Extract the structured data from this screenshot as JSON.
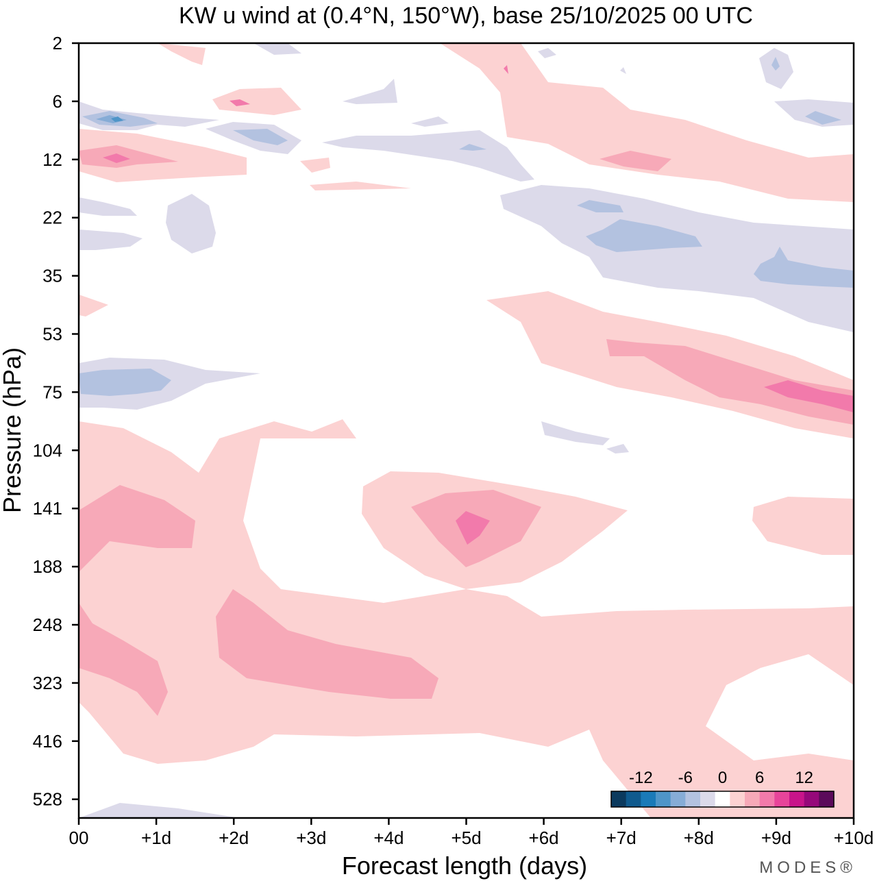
{
  "chart_data": {
    "type": "heatmap",
    "title": "KW u wind at (0.4°N, 150°W),  base 25/10/2025  00 UTC",
    "xlabel": "Forecast length (days)",
    "ylabel": "Pressure (hPa)",
    "x_ticks": [
      "00",
      "+1d",
      "+2d",
      "+3d",
      "+4d",
      "+5d",
      "+6d",
      "+7d",
      "+8d",
      "+9d",
      "+10d"
    ],
    "y_ticks": [
      "2",
      "6",
      "12",
      "22",
      "35",
      "53",
      "75",
      "104",
      "141",
      "188",
      "248",
      "323",
      "416",
      "528"
    ],
    "xlim_days": [
      0,
      10
    ],
    "y_axis": "pressure, inverted (2 hPa at top)",
    "colorbar": {
      "labels": [
        "-12",
        "-6",
        "0",
        "6",
        "12"
      ],
      "levels": [
        -16,
        -14,
        -12,
        -10,
        -8,
        -6,
        -4,
        -2,
        2,
        4,
        6,
        8,
        10,
        12,
        14,
        16
      ],
      "colors": [
        "#0b3a5e",
        "#0f5a8e",
        "#1a7ab8",
        "#4f95c8",
        "#86acd6",
        "#b3c2e0",
        "#dcdaea",
        "#ffffff",
        "#fcd2d2",
        "#f7a9b8",
        "#f27aab",
        "#e8449a",
        "#c8148a",
        "#96087a",
        "#5b0a5a"
      ],
      "location": "bottom-right"
    },
    "features": [
      {
        "name": "upper-level easterly patch near 8 hPa",
        "day": 0.5,
        "pressure_hPa": 8,
        "value": -8
      },
      {
        "name": "upper-level westerly patch near 12 hPa",
        "day": 0.5,
        "pressure_hPa": 12,
        "value": 8
      },
      {
        "name": "easterly band 22-40 hPa",
        "days": [
          5.5,
          10
        ],
        "pressure_hPa": [
          18,
          45
        ],
        "value": -4
      },
      {
        "name": "westerly band 53-104 hPa",
        "days": [
          5.5,
          10
        ],
        "pressure_hPa": [
          45,
          100
        ],
        "value": 10
      },
      {
        "name": "westerly maximum near 150 hPa",
        "day": 5,
        "pressure_hPa": 150,
        "value": 10
      },
      {
        "name": "westerly layer 248-340 hPa",
        "days": [
          0,
          4.6
        ],
        "pressure_hPa": [
          230,
          340
        ],
        "value": 6
      },
      {
        "name": "easterly patch near 70 hPa",
        "day": 0.6,
        "pressure_hPa": 70,
        "value": -6
      }
    ]
  },
  "brand": "MODES®"
}
